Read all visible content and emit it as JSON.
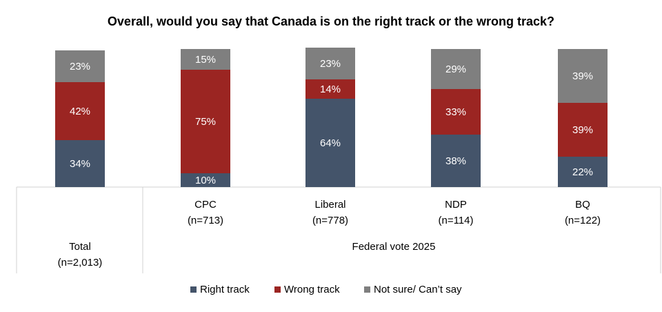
{
  "chart_data": {
    "type": "stacked-bar",
    "title": "Overall, would you say that Canada is on the right track or the wrong track?",
    "categories": [
      "Total",
      "CPC",
      "Liberal",
      "NDP",
      "BQ"
    ],
    "sample_sizes": [
      "(n=2,013)",
      "(n=713)",
      "(n=778)",
      "(n=114)",
      "(n=122)"
    ],
    "group_label": "Federal vote 2025",
    "ylim": [
      0,
      100
    ],
    "series": [
      {
        "name": "Right track",
        "color": "#44546a",
        "values": [
          34,
          10,
          64,
          38,
          22
        ],
        "value_labels": [
          "34%",
          "10%",
          "64%",
          "38%",
          "22%"
        ]
      },
      {
        "name": "Wrong track",
        "color": "#9b2522",
        "values": [
          42,
          75,
          14,
          33,
          39
        ],
        "value_labels": [
          "42%",
          "75%",
          "14%",
          "33%",
          "39%"
        ]
      },
      {
        "name": "Not sure/ Can’t say",
        "color": "#7f7f7f",
        "values": [
          23,
          15,
          23,
          29,
          39
        ],
        "value_labels": [
          "23%",
          "15%",
          "23%",
          "29%",
          "39%"
        ]
      }
    ]
  }
}
